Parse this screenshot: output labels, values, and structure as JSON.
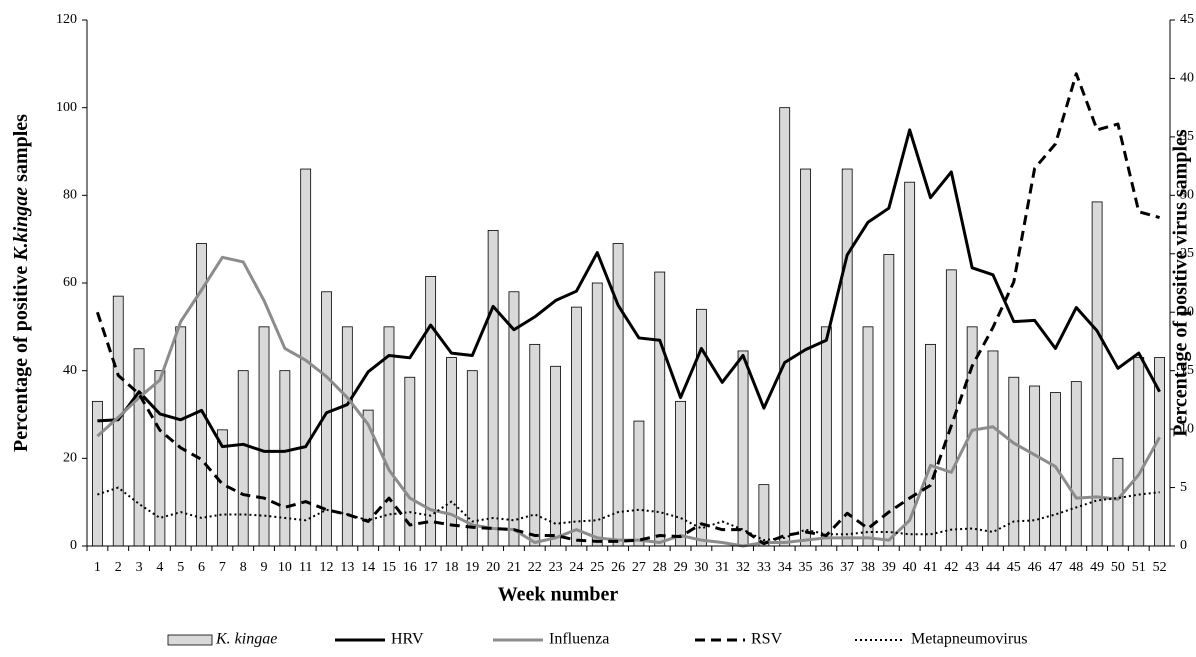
{
  "chart_data": {
    "type": "bar",
    "y_label": [
      "Percentage of positive ",
      "K.kingae",
      " samples"
    ],
    "y2_label": "Percentage of positive virus samples",
    "x_label": "Week number",
    "categories": [
      "1",
      "2",
      "3",
      "4",
      "5",
      "6",
      "7",
      "8",
      "9",
      "10",
      "11",
      "12",
      "13",
      "14",
      "15",
      "16",
      "17",
      "18",
      "19",
      "20",
      "21",
      "22",
      "23",
      "24",
      "25",
      "26",
      "27",
      "28",
      "29",
      "30",
      "31",
      "32",
      "33",
      "34",
      "35",
      "36",
      "37",
      "38",
      "39",
      "40",
      "41",
      "42",
      "43",
      "44",
      "45",
      "46",
      "47",
      "48",
      "49",
      "50",
      "51",
      "52"
    ],
    "ylim": [
      0,
      120
    ],
    "yticks": [
      0,
      20,
      40,
      60,
      80,
      100,
      120
    ],
    "y2lim": [
      0,
      45
    ],
    "y2ticks": [
      0,
      5,
      10,
      15,
      20,
      25,
      30,
      35,
      40,
      45
    ],
    "grid": false,
    "series": [
      {
        "name": "K. kingae",
        "kind": "bar",
        "color": "#d9d9d9",
        "axis": "y",
        "values": [
          33,
          57,
          45,
          40,
          50,
          69,
          26.5,
          40,
          50,
          40,
          86,
          58,
          50,
          31,
          50,
          38.5,
          61.5,
          43,
          40,
          72,
          58,
          46,
          41,
          54.5,
          60,
          69,
          28.5,
          62.5,
          33,
          54,
          0,
          44.5,
          14,
          100,
          86,
          50,
          86,
          50,
          66.5,
          83,
          46,
          63,
          50,
          44.5,
          38.5,
          36.5,
          35,
          37.5,
          78.5,
          20,
          43,
          43
        ]
      },
      {
        "name": "HRV",
        "kind": "line",
        "style": "solid",
        "color": "#000000",
        "axis": "y2",
        "values": [
          10.7,
          10.8,
          13.2,
          11.3,
          10.8,
          11.6,
          8.5,
          8.7,
          8.1,
          8.1,
          8.5,
          11.4,
          12.1,
          14.9,
          16.3,
          16.1,
          18.9,
          16.5,
          16.3,
          20.5,
          18.5,
          19.6,
          21,
          21.8,
          25.1,
          20.6,
          17.8,
          17.6,
          12.7,
          16.9,
          14,
          16.3,
          11.8,
          15.7,
          16.8,
          17.6,
          24.9,
          27.7,
          28.9,
          35.6,
          29.8,
          32,
          23.8,
          23.2,
          19.2,
          19.3,
          16.9,
          20.4,
          18.4,
          15.2,
          16.5,
          13.2
        ]
      },
      {
        "name": "Influenza",
        "kind": "line",
        "style": "solid",
        "color": "#8c8c8c",
        "axis": "y2",
        "values": [
          9.4,
          11,
          12.7,
          14.2,
          19.2,
          21.9,
          24.7,
          24.3,
          21,
          16.9,
          15.9,
          14.5,
          12.7,
          10.4,
          6.5,
          4.1,
          3.1,
          2.7,
          1.8,
          1.5,
          1.4,
          0.3,
          0.7,
          1.4,
          0.7,
          0.5,
          0.5,
          0.3,
          0.9,
          0.5,
          0.3,
          0,
          0.3,
          0.3,
          0.5,
          0.7,
          0.7,
          0.7,
          0.5,
          2.2,
          6.9,
          6.3,
          9.9,
          10.2,
          8.8,
          7.8,
          6.8,
          4.1,
          4.2,
          4,
          6.1,
          9.3
        ]
      },
      {
        "name": "RSV",
        "kind": "line",
        "style": "dashed",
        "color": "#000000",
        "axis": "y2",
        "values": [
          20,
          14.6,
          13,
          9.9,
          8.4,
          7.4,
          5.3,
          4.4,
          4.1,
          3.3,
          3.8,
          3.1,
          2.7,
          2.1,
          4.1,
          1.8,
          2.1,
          1.8,
          1.6,
          1.5,
          1.4,
          0.9,
          0.9,
          0.5,
          0.4,
          0.4,
          0.5,
          0.9,
          0.8,
          1.9,
          1.4,
          1.4,
          0.2,
          0.9,
          1.2,
          0.9,
          2.8,
          1.5,
          2.9,
          4.1,
          5.2,
          10.3,
          15.4,
          18.7,
          22.6,
          32.3,
          34.4,
          40.4,
          35.6,
          36.1,
          28.6,
          28.1
        ]
      },
      {
        "name": "Metapneumovirus",
        "kind": "line",
        "style": "dotted",
        "color": "#000000",
        "axis": "y2",
        "values": [
          4.4,
          5,
          3.6,
          2.4,
          2.9,
          2.4,
          2.7,
          2.7,
          2.6,
          2.4,
          2.2,
          3.1,
          2.7,
          2.2,
          2.7,
          2.9,
          2.6,
          3.8,
          2.1,
          2.4,
          2.2,
          2.7,
          1.9,
          2.1,
          2.2,
          2.9,
          3.1,
          2.9,
          2.4,
          1.5,
          2.1,
          1.4,
          0.5,
          0.7,
          1.4,
          1,
          1,
          1.2,
          1.2,
          1,
          1,
          1.4,
          1.5,
          1.2,
          2.1,
          2.2,
          2.7,
          3.3,
          3.9,
          4.1,
          4.4,
          4.6
        ]
      }
    ]
  }
}
